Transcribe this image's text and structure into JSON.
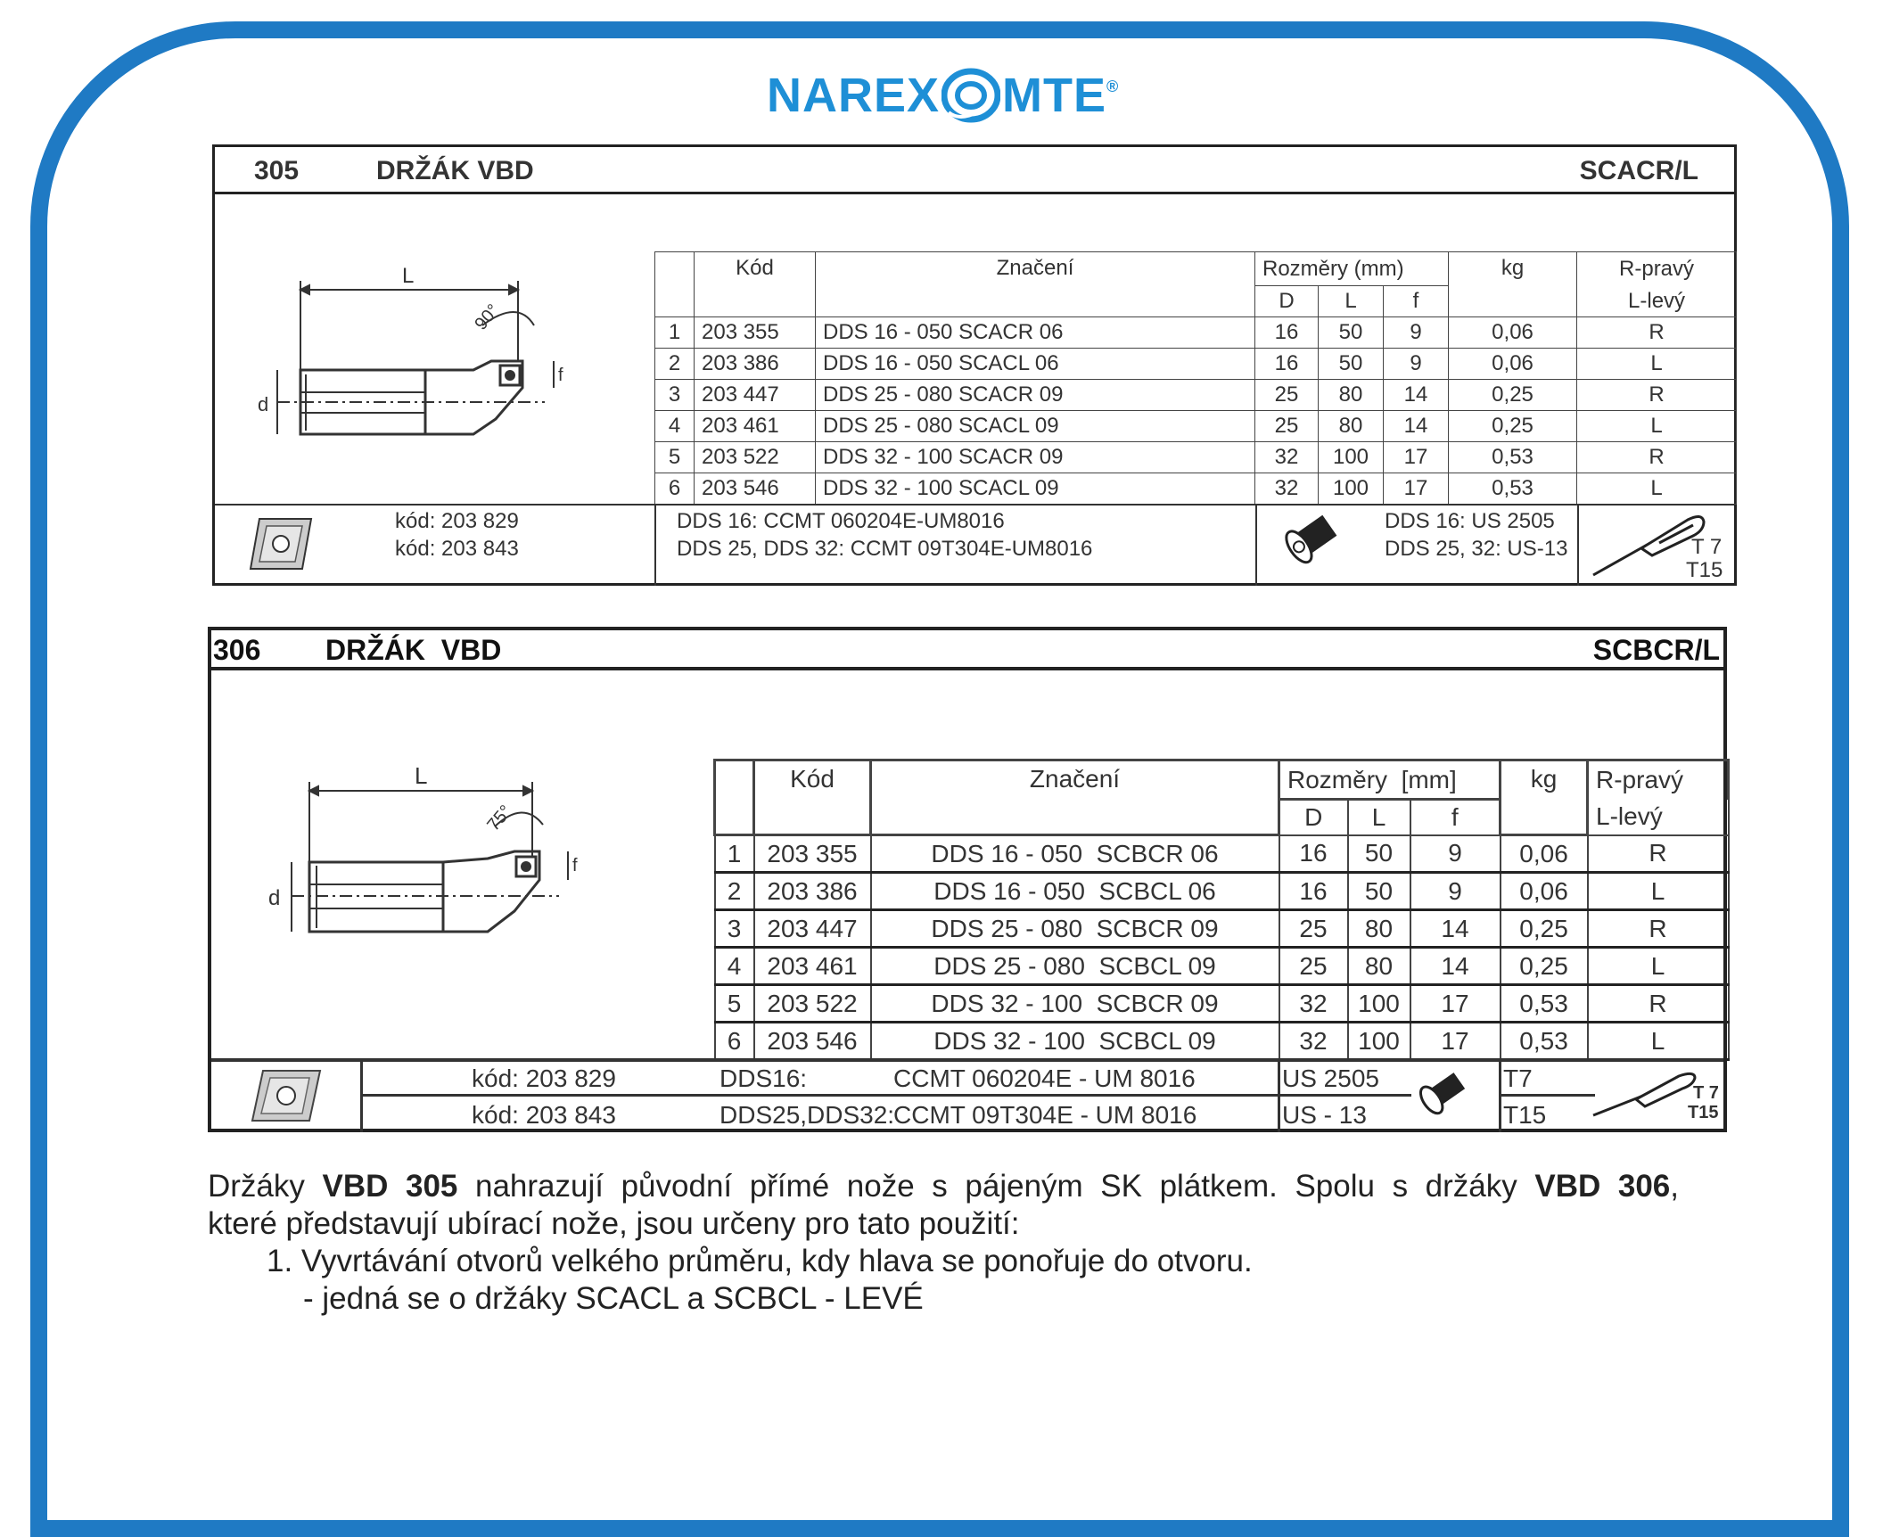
{
  "brand": {
    "name_left": "NAREX",
    "name_right": "MTE",
    "registered": "®",
    "color": "#1e8fd6",
    "frame_color": "#1f7ac4"
  },
  "t305": {
    "number": "305",
    "title": "DRŽÁK VBD",
    "type": "SCACR/L",
    "drawing": {
      "dim_L": "L",
      "dim_d": "d",
      "dim_f": "f",
      "angle": "90°"
    },
    "columns": {
      "kod": "Kód",
      "znaceni": "Značení",
      "rozmery": "Rozměry (mm)",
      "D": "D",
      "L": "L",
      "f": "f",
      "kg": "kg",
      "side1": "R-pravý",
      "side2": "L-levý"
    },
    "rows": [
      {
        "n": "1",
        "kod": "203 355",
        "znaceni": "DDS 16 - 050 SCACR 06",
        "D": "16",
        "L": "50",
        "f": "9",
        "kg": "0,06",
        "side": "R"
      },
      {
        "n": "2",
        "kod": "203 386",
        "znaceni": "DDS 16 - 050 SCACL 06",
        "D": "16",
        "L": "50",
        "f": "9",
        "kg": "0,06",
        "side": "L"
      },
      {
        "n": "3",
        "kod": "203 447",
        "znaceni": "DDS 25 - 080 SCACR 09",
        "D": "25",
        "L": "80",
        "f": "14",
        "kg": "0,25",
        "side": "R"
      },
      {
        "n": "4",
        "kod": "203 461",
        "znaceni": "DDS 25 - 080 SCACL 09",
        "D": "25",
        "L": "80",
        "f": "14",
        "kg": "0,25",
        "side": "L"
      },
      {
        "n": "5",
        "kod": "203 522",
        "znaceni": "DDS 32 - 100 SCACR 09",
        "D": "32",
        "L": "100",
        "f": "17",
        "kg": "0,53",
        "side": "R"
      },
      {
        "n": "6",
        "kod": "203 546",
        "znaceni": "DDS 32 - 100 SCACL 09",
        "D": "32",
        "L": "100",
        "f": "17",
        "kg": "0,53",
        "side": "L"
      }
    ],
    "footer": {
      "kod1": "kód: 203 829",
      "kod2": "kód: 203 843",
      "insert1": "DDS 16: CCMT 060204E-UM8016",
      "insert2": "DDS 25, DDS 32: CCMT 09T304E-UM8016",
      "screw1": "DDS 16: US 2505",
      "screw2": "DDS 25, 32: US-13",
      "key1": "T 7",
      "key2": "T15"
    }
  },
  "t306": {
    "number": "306",
    "title": "DRŽÁK  VBD",
    "type": "SCBCR/L",
    "drawing": {
      "dim_L": "L",
      "dim_d": "d",
      "dim_f": "f",
      "angle": "75°"
    },
    "columns": {
      "kod": "Kód",
      "znaceni": "Značení",
      "rozmery": "Rozměry  [mm]",
      "D": "D",
      "L": "L",
      "f": "f",
      "kg": "kg",
      "side1": "R-pravý",
      "side2": "L-levý"
    },
    "rows": [
      {
        "n": "1",
        "kod": "203 355",
        "znaceni": "DDS 16 - 050  SCBCR 06",
        "D": "16",
        "L": "50",
        "f": "9",
        "kg": "0,06",
        "side": "R"
      },
      {
        "n": "2",
        "kod": "203 386",
        "znaceni": "DDS 16 - 050  SCBCL 06",
        "D": "16",
        "L": "50",
        "f": "9",
        "kg": "0,06",
        "side": "L"
      },
      {
        "n": "3",
        "kod": "203 447",
        "znaceni": "DDS 25 - 080  SCBCR 09",
        "D": "25",
        "L": "80",
        "f": "14",
        "kg": "0,25",
        "side": "R"
      },
      {
        "n": "4",
        "kod": "203 461",
        "znaceni": "DDS 25 - 080  SCBCL 09",
        "D": "25",
        "L": "80",
        "f": "14",
        "kg": "0,25",
        "side": "L"
      },
      {
        "n": "5",
        "kod": "203 522",
        "znaceni": "DDS 32 - 100  SCBCR 09",
        "D": "32",
        "L": "100",
        "f": "17",
        "kg": "0,53",
        "side": "R"
      },
      {
        "n": "6",
        "kod": "203 546",
        "znaceni": "DDS 32 - 100  SCBCL 09",
        "D": "32",
        "L": "100",
        "f": "17",
        "kg": "0,53",
        "side": "L"
      }
    ],
    "footer": {
      "kod1": "kód: 203 829",
      "kod2": "kód: 203 843",
      "dds1": "DDS16:",
      "insert1": "CCMT 060204E - UM 8016",
      "dds2": "DDS25,DDS32:",
      "insert2": "CCMT 09T304E - UM 8016",
      "screw1": "US 2505",
      "screw2": "US - 13",
      "key1": "T7",
      "key2": "T15",
      "keylabel1": "T 7",
      "keylabel2": "T15"
    }
  },
  "text": {
    "p1_a": "Držáky ",
    "p1_b": "VBD 305",
    "p1_c": " nahrazují původní přímé nože s pájeným SK plátkem. Spolu s držáky ",
    "p1_d": "VBD 306",
    "p1_e": ",",
    "p2": "které představují ubírací nože, jsou určeny pro tato použití:",
    "item1": "1. Vyvrtávání otvorů velkého průměru, kdy hlava se ponořuje do otvoru.",
    "item1_sub": "- jedná se o držáky SCACL a  SCBCL  -  LEVÉ"
  }
}
